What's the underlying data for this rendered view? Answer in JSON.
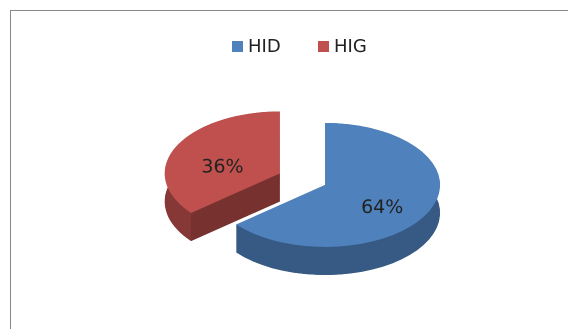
{
  "chart_data": {
    "type": "pie3d",
    "categories": [
      "HID",
      "HIG"
    ],
    "values": [
      64,
      36
    ],
    "value_labels": [
      "64%",
      "36%"
    ],
    "colors": [
      "#4f81bd",
      "#c0504d"
    ],
    "legend": "top"
  }
}
